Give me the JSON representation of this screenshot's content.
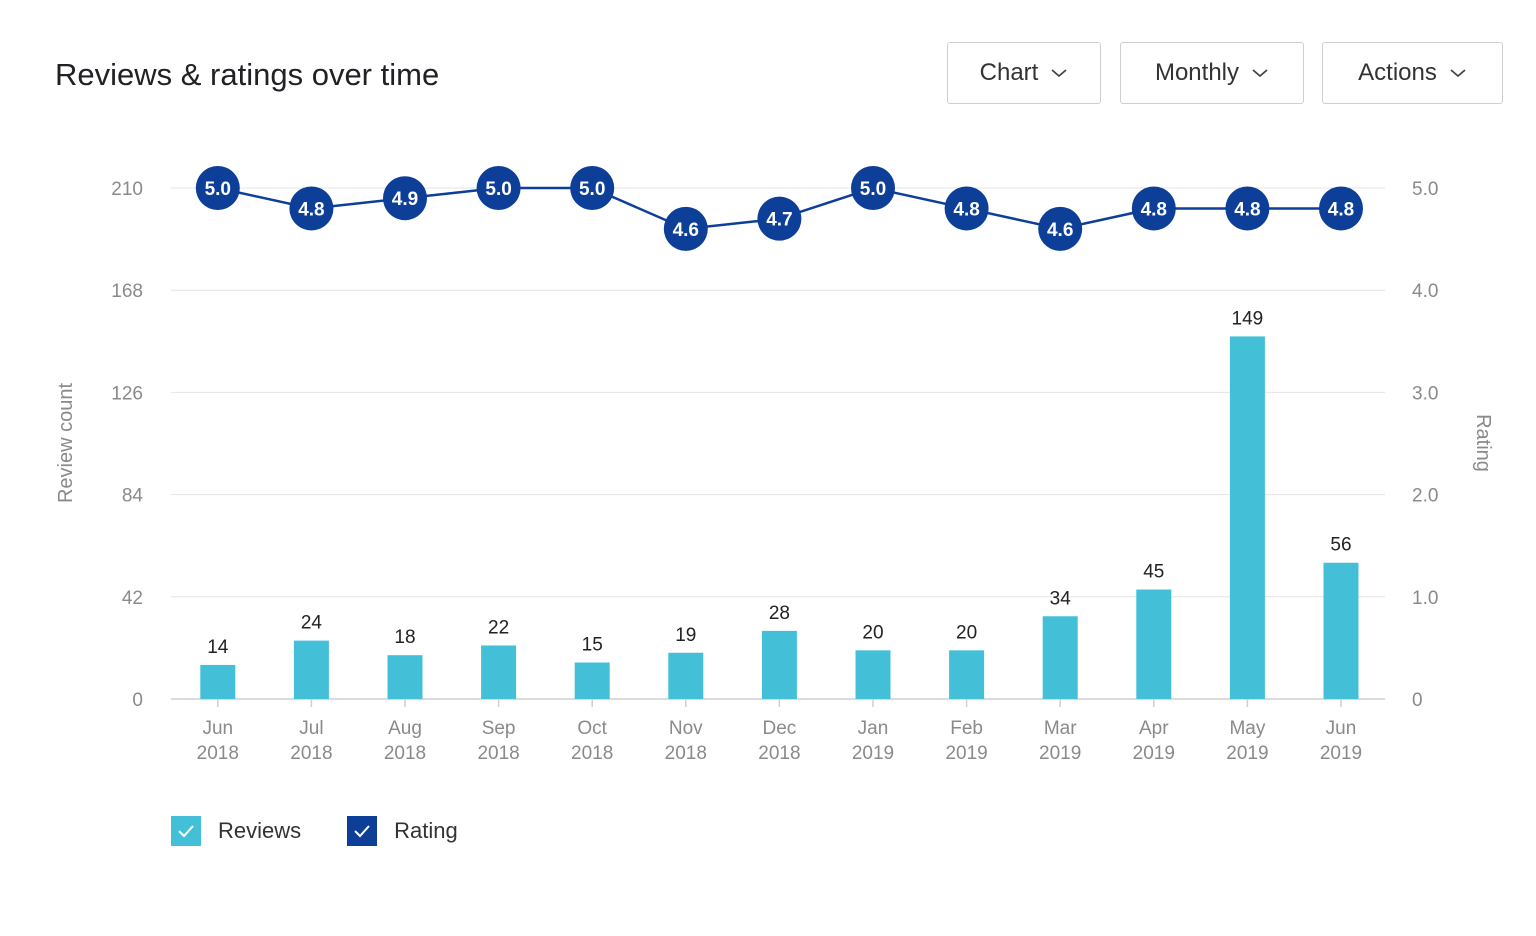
{
  "header": {
    "title": "Reviews & ratings over time"
  },
  "controls": {
    "chart_label": "Chart",
    "period_label": "Monthly",
    "actions_label": "Actions"
  },
  "colors": {
    "reviews": "#43c0d8",
    "rating": "#0d3f99",
    "grid": "#e4e4e4",
    "axis_text": "#8a8a8a"
  },
  "chart_data": {
    "type": "bar",
    "title": "Reviews & ratings over time",
    "categories": [
      "Jun 2018",
      "Jul 2018",
      "Aug 2018",
      "Sep 2018",
      "Oct 2018",
      "Nov 2018",
      "Dec 2018",
      "Jan 2019",
      "Feb 2019",
      "Mar 2019",
      "Apr 2019",
      "May 2019",
      "Jun 2019"
    ],
    "category_lines": [
      [
        "Jun",
        "2018"
      ],
      [
        "Jul",
        "2018"
      ],
      [
        "Aug",
        "2018"
      ],
      [
        "Sep",
        "2018"
      ],
      [
        "Oct",
        "2018"
      ],
      [
        "Nov",
        "2018"
      ],
      [
        "Dec",
        "2018"
      ],
      [
        "Jan",
        "2019"
      ],
      [
        "Feb",
        "2019"
      ],
      [
        "Mar",
        "2019"
      ],
      [
        "Apr",
        "2019"
      ],
      [
        "May",
        "2019"
      ],
      [
        "Jun",
        "2019"
      ]
    ],
    "series": [
      {
        "name": "Reviews",
        "type": "bar",
        "axis": "left",
        "values": [
          14,
          24,
          18,
          22,
          15,
          19,
          28,
          20,
          20,
          34,
          45,
          149,
          56
        ]
      },
      {
        "name": "Rating",
        "type": "line",
        "axis": "right",
        "values": [
          5.0,
          4.8,
          4.9,
          5.0,
          5.0,
          4.6,
          4.7,
          5.0,
          4.8,
          4.6,
          4.8,
          4.8,
          4.8
        ]
      }
    ],
    "ylabel": "Review count",
    "ylabel_right": "Rating",
    "ylim": [
      0,
      210
    ],
    "ylim_right": [
      0,
      5.0
    ],
    "yticks": [
      "0",
      "42",
      "84",
      "126",
      "168",
      "210"
    ],
    "yticks_right": [
      "0",
      "1.0",
      "2.0",
      "3.0",
      "4.0",
      "5.0"
    ],
    "grid": true,
    "legend": [
      "Reviews",
      "Rating"
    ],
    "legend_position": "bottom-left"
  }
}
